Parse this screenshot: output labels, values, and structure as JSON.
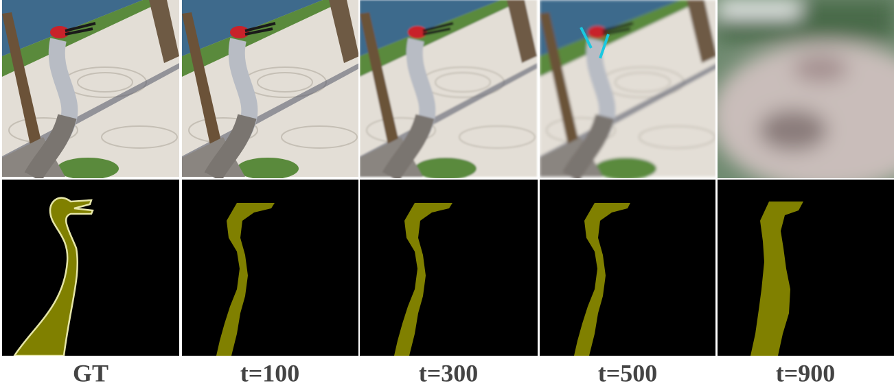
{
  "figure": {
    "labels": [
      "GT",
      "t=100",
      "t=300",
      "t=500",
      "t=900"
    ]
  }
}
